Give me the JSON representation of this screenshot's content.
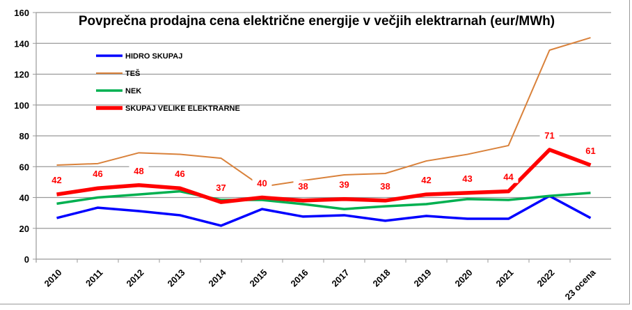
{
  "chart_data": {
    "type": "line",
    "title": "Povprečna prodajna cena električne energije v večjih elektrarnah (eur/MWh)",
    "xlabel": "",
    "ylabel": "",
    "ylim": [
      0,
      160
    ],
    "yticks": [
      "0",
      "20",
      "40",
      "60",
      "80",
      "100",
      "120",
      "140",
      "160"
    ],
    "grid": true,
    "legend_position": "top-left",
    "categories": [
      "2010",
      "2011",
      "2012",
      "2013",
      "2014",
      "2015",
      "2016",
      "2017",
      "2018",
      "2019",
      "2020",
      "2021",
      "2022",
      "23 ocena"
    ],
    "series": [
      {
        "name": "HIDRO SKUPAJ",
        "color": "#0000FF",
        "values": [
          26.7,
          33.4,
          31.2,
          28.5,
          21.7,
          32.5,
          27.6,
          28.5,
          24.9,
          28,
          26.2,
          26.2,
          41,
          26.7
        ]
      },
      {
        "name": "TEŠ",
        "color": "#D9813A",
        "values": [
          61,
          62,
          69,
          68,
          65.5,
          47,
          51,
          54.7,
          55.6,
          63.7,
          68,
          73.7,
          135.6,
          143.7
        ]
      },
      {
        "name": "NEK",
        "color": "#00B050",
        "values": [
          36,
          40,
          42,
          44,
          38.4,
          38.4,
          35.7,
          32.5,
          34.3,
          35.7,
          39,
          38.4,
          41,
          43
        ]
      },
      {
        "name": "SKUPAJ VELIKE ELEKTRARNE",
        "color": "#FF0000",
        "values": [
          42,
          46,
          48,
          46,
          37,
          40,
          38,
          39,
          38,
          42,
          43,
          44,
          71,
          61
        ],
        "data_labels": [
          "42",
          "46",
          "48",
          "46",
          "37",
          "40",
          "38",
          "39",
          "38",
          "42",
          "43",
          "44",
          "71",
          "61"
        ]
      }
    ]
  }
}
